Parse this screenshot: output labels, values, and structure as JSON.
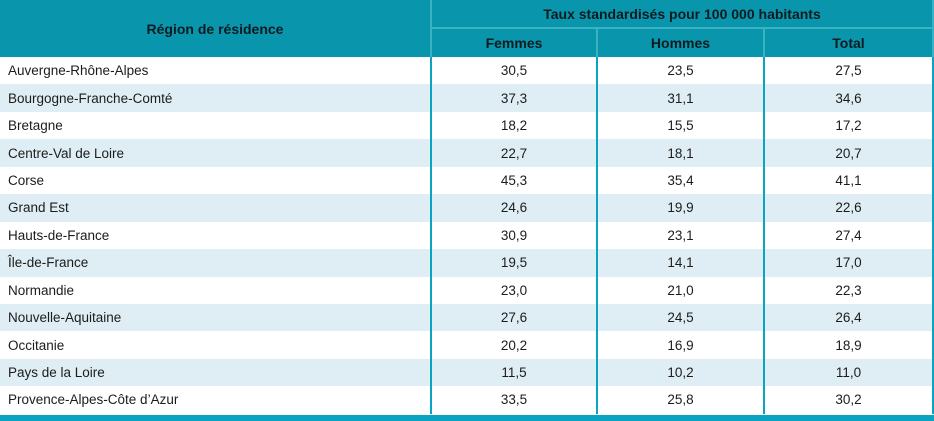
{
  "colors": {
    "header_bg": "#0996ad",
    "row_alt_bg": "#dfeef5",
    "divider": "#0ba3c2",
    "header_divider": "#3ab2c4"
  },
  "table": {
    "region_header": "Région de résidence",
    "group_header": "Taux standardisés pour 100 000 habitants",
    "columns": [
      "Femmes",
      "Hommes",
      "Total"
    ],
    "rows": [
      {
        "region": "Auvergne-Rhône-Alpes",
        "femmes": "30,5",
        "hommes": "23,5",
        "total": "27,5"
      },
      {
        "region": "Bourgogne-Franche-Comté",
        "femmes": "37,3",
        "hommes": "31,1",
        "total": "34,6"
      },
      {
        "region": "Bretagne",
        "femmes": "18,2",
        "hommes": "15,5",
        "total": "17,2"
      },
      {
        "region": "Centre-Val de Loire",
        "femmes": "22,7",
        "hommes": "18,1",
        "total": "20,7"
      },
      {
        "region": "Corse",
        "femmes": "45,3",
        "hommes": "35,4",
        "total": "41,1"
      },
      {
        "region": "Grand Est",
        "femmes": "24,6",
        "hommes": "19,9",
        "total": "22,6"
      },
      {
        "region": "Hauts-de-France",
        "femmes": "30,9",
        "hommes": "23,1",
        "total": "27,4"
      },
      {
        "region": "Île-de-France",
        "femmes": "19,5",
        "hommes": "14,1",
        "total": "17,0"
      },
      {
        "region": "Normandie",
        "femmes": "23,0",
        "hommes": "21,0",
        "total": "22,3"
      },
      {
        "region": "Nouvelle-Aquitaine",
        "femmes": "27,6",
        "hommes": "24,5",
        "total": "26,4"
      },
      {
        "region": "Occitanie",
        "femmes": "20,2",
        "hommes": "16,9",
        "total": "18,9"
      },
      {
        "region": "Pays de la Loire",
        "femmes": "11,5",
        "hommes": "10,2",
        "total": "11,0"
      },
      {
        "region": "Provence-Alpes-Côte d’Azur",
        "femmes": "33,5",
        "hommes": "25,8",
        "total": "30,2"
      }
    ]
  },
  "chart_data": {
    "type": "table",
    "title": "Taux standardisés pour 100 000 habitants",
    "categories": [
      "Auvergne-Rhône-Alpes",
      "Bourgogne-Franche-Comté",
      "Bretagne",
      "Centre-Val de Loire",
      "Corse",
      "Grand Est",
      "Hauts-de-France",
      "Île-de-France",
      "Normandie",
      "Nouvelle-Aquitaine",
      "Occitanie",
      "Pays de la Loire",
      "Provence-Alpes-Côte d’Azur"
    ],
    "series": [
      {
        "name": "Femmes",
        "values": [
          30.5,
          37.3,
          18.2,
          22.7,
          45.3,
          24.6,
          30.9,
          19.5,
          23.0,
          27.6,
          20.2,
          11.5,
          33.5
        ]
      },
      {
        "name": "Hommes",
        "values": [
          23.5,
          31.1,
          15.5,
          18.1,
          35.4,
          19.9,
          23.1,
          14.1,
          21.0,
          24.5,
          16.9,
          10.2,
          25.8
        ]
      },
      {
        "name": "Total",
        "values": [
          27.5,
          34.6,
          17.2,
          20.7,
          41.1,
          22.6,
          27.4,
          17.0,
          22.3,
          26.4,
          18.9,
          11.0,
          30.2
        ]
      }
    ]
  }
}
